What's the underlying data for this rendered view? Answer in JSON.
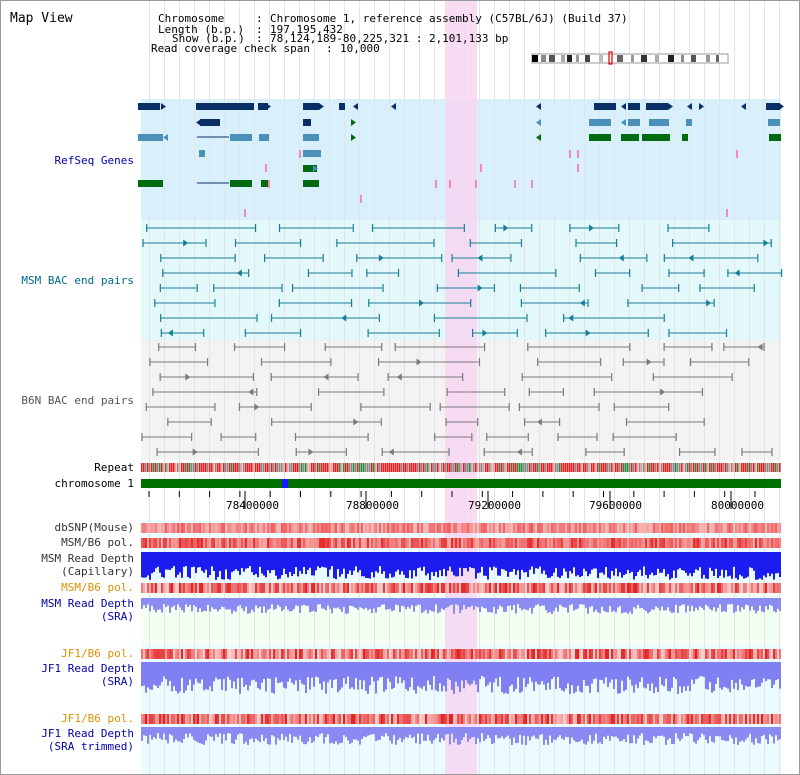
{
  "view": {
    "title": "Map View"
  },
  "header": {
    "chromosome_key": "Chromosome",
    "chromosome_val": "Chromosome 1, reference assembly (C57BL/6J) (Build 37)",
    "length_key": "Length (b.p.)",
    "length_val": "197,195,432",
    "show_key": "Show (b.p.)",
    "show_val": "78,124,189-80,225,321 : 2,101,133 bp",
    "coverage_key": "Read coverage check span",
    "coverage_val": "10,000"
  },
  "tracks": {
    "refseq": "RefSeq Genes",
    "msm_bac": "MSM BAC end pairs",
    "b6n_bac": "B6N BAC end pairs",
    "repeat": "Repeat",
    "chromosome": "chromosome 1",
    "dbsnp": "dbSNP(Mouse)",
    "msm_b6_pol_1": "MSM/B6 pol.",
    "msm_read_depth_cap": "MSM Read Depth\n(Capillary)",
    "msm_b6_pol_2": "MSM/B6 pol.",
    "msm_read_depth_sra": "MSM Read Depth\n(SRA)",
    "jf1_b6_pol_1": "JF1/B6 pol.",
    "jf1_read_depth_sra": "JF1 Read Depth\n(SRA)",
    "jf1_b6_pol_2": "JF1/B6 pol.",
    "jf1_read_depth_trim": "JF1 Read Depth\n(SRA trimmed)"
  },
  "axis": {
    "ticks": [
      "78400000",
      "78800000",
      "79200000",
      "79600000",
      "80000000"
    ]
  },
  "colors": {
    "label_blue": "#0000a8",
    "label_teal": "#006a8a",
    "label_gray": "#555555",
    "label_orange": "#e09000",
    "highlight": "#f7d6f2",
    "chrom_bar": "#007000"
  }
}
